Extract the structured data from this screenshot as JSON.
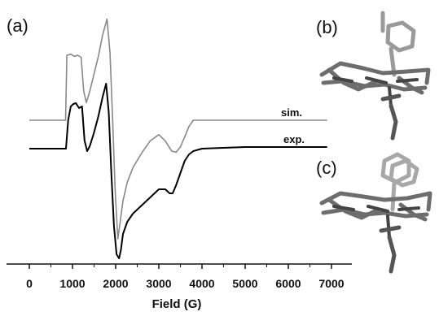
{
  "panels": {
    "a": "(a)",
    "b": "(b)",
    "c": "(c)"
  },
  "chart_data": {
    "type": "line",
    "title": "",
    "xlabel": "Field (G)",
    "ylabel": "",
    "xlim": [
      0,
      7000
    ],
    "xticks": [
      0,
      1000,
      2000,
      3000,
      4000,
      5000,
      6000,
      7000
    ],
    "grid": false,
    "y_axis_shown": false,
    "series": [
      {
        "name": "sim.",
        "color": "#888888",
        "x": [
          0,
          840,
          870,
          960,
          1040,
          1120,
          1200,
          1260,
          1320,
          1400,
          1500,
          1600,
          1700,
          1800,
          1870,
          1930,
          1990,
          2050,
          2100,
          2170,
          2270,
          2400,
          2600,
          2800,
          3000,
          3150,
          3300,
          3400,
          3500,
          3600,
          3700,
          3800,
          4000,
          5000,
          6000,
          6900
        ],
        "y": [
          0,
          0,
          0.63,
          0.64,
          0.62,
          0.63,
          0.61,
          0.28,
          0.17,
          0.28,
          0.45,
          0.62,
          0.83,
          0.98,
          0.65,
          0.0,
          -0.7,
          -1.15,
          -1.0,
          -0.78,
          -0.6,
          -0.46,
          -0.32,
          -0.2,
          -0.14,
          -0.2,
          -0.3,
          -0.31,
          -0.26,
          -0.16,
          -0.06,
          0,
          0,
          0,
          0,
          0
        ]
      },
      {
        "name": "exp.",
        "color": "#000000",
        "x": [
          0,
          850,
          900,
          960,
          1020,
          1080,
          1150,
          1220,
          1280,
          1340,
          1400,
          1500,
          1600,
          1700,
          1780,
          1840,
          1900,
          1960,
          2020,
          2080,
          2120,
          2170,
          2270,
          2400,
          2600,
          2800,
          3000,
          3150,
          3250,
          3320,
          3400,
          3500,
          3600,
          3700,
          3800,
          4000,
          5000,
          6000,
          6900
        ],
        "y": [
          0,
          0,
          0.35,
          0.52,
          0.55,
          0.56,
          0.5,
          0.52,
          0.1,
          -0.03,
          0.03,
          0.2,
          0.4,
          0.64,
          0.8,
          0.45,
          -0.3,
          -0.95,
          -1.3,
          -1.35,
          -1.25,
          -1.05,
          -0.9,
          -0.8,
          -0.7,
          -0.6,
          -0.5,
          -0.5,
          -0.55,
          -0.55,
          -0.45,
          -0.3,
          -0.15,
          -0.07,
          -0.03,
          0,
          0.02,
          0.02,
          0.02
        ]
      }
    ]
  }
}
